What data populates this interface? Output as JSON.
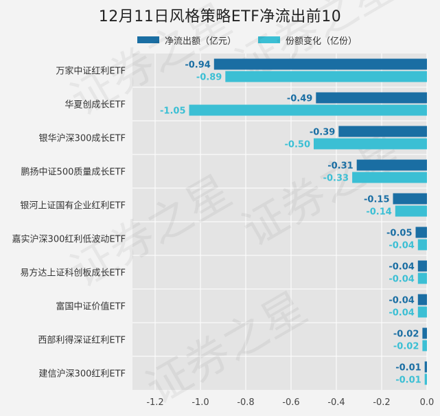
{
  "chart_data": {
    "type": "bar",
    "orientation": "horizontal",
    "title": "12月11日风格策略ETF净流出前10",
    "categories": [
      "万家中证红利ETF",
      "华夏创成长ETF",
      "银华沪深300成长ETF",
      "鹏扬中证500质量成长ETF",
      "银河上证国有企业红利ETF",
      "嘉实沪深300红利低波动ETF",
      "易方达上证科创板成长ETF",
      "富国中证价值ETF",
      "西部利得深证红利ETF",
      "建信沪深300红利ETF"
    ],
    "series": [
      {
        "name": "净流出额（亿元）",
        "color": "#1a6ea3",
        "values": [
          -0.94,
          -0.49,
          -0.39,
          -0.31,
          -0.15,
          -0.05,
          -0.04,
          -0.04,
          -0.02,
          -0.01
        ]
      },
      {
        "name": "份额变化（亿份）",
        "color": "#3bbfd4",
        "values": [
          -0.89,
          -1.05,
          -0.5,
          -0.33,
          -0.14,
          -0.04,
          -0.04,
          -0.04,
          -0.02,
          -0.01
        ]
      }
    ],
    "xlim": [
      -1.3,
      0
    ],
    "xticks": [
      "-1.2",
      "-1.0",
      "-0.8",
      "-0.6",
      "-0.4",
      "-0.2",
      "0.0"
    ],
    "xtick_values": [
      -1.2,
      -1.0,
      -0.8,
      -0.6,
      -0.4,
      -0.2,
      0.0
    ],
    "grid": true,
    "legend_position": "top",
    "watermark": "证券之星"
  }
}
